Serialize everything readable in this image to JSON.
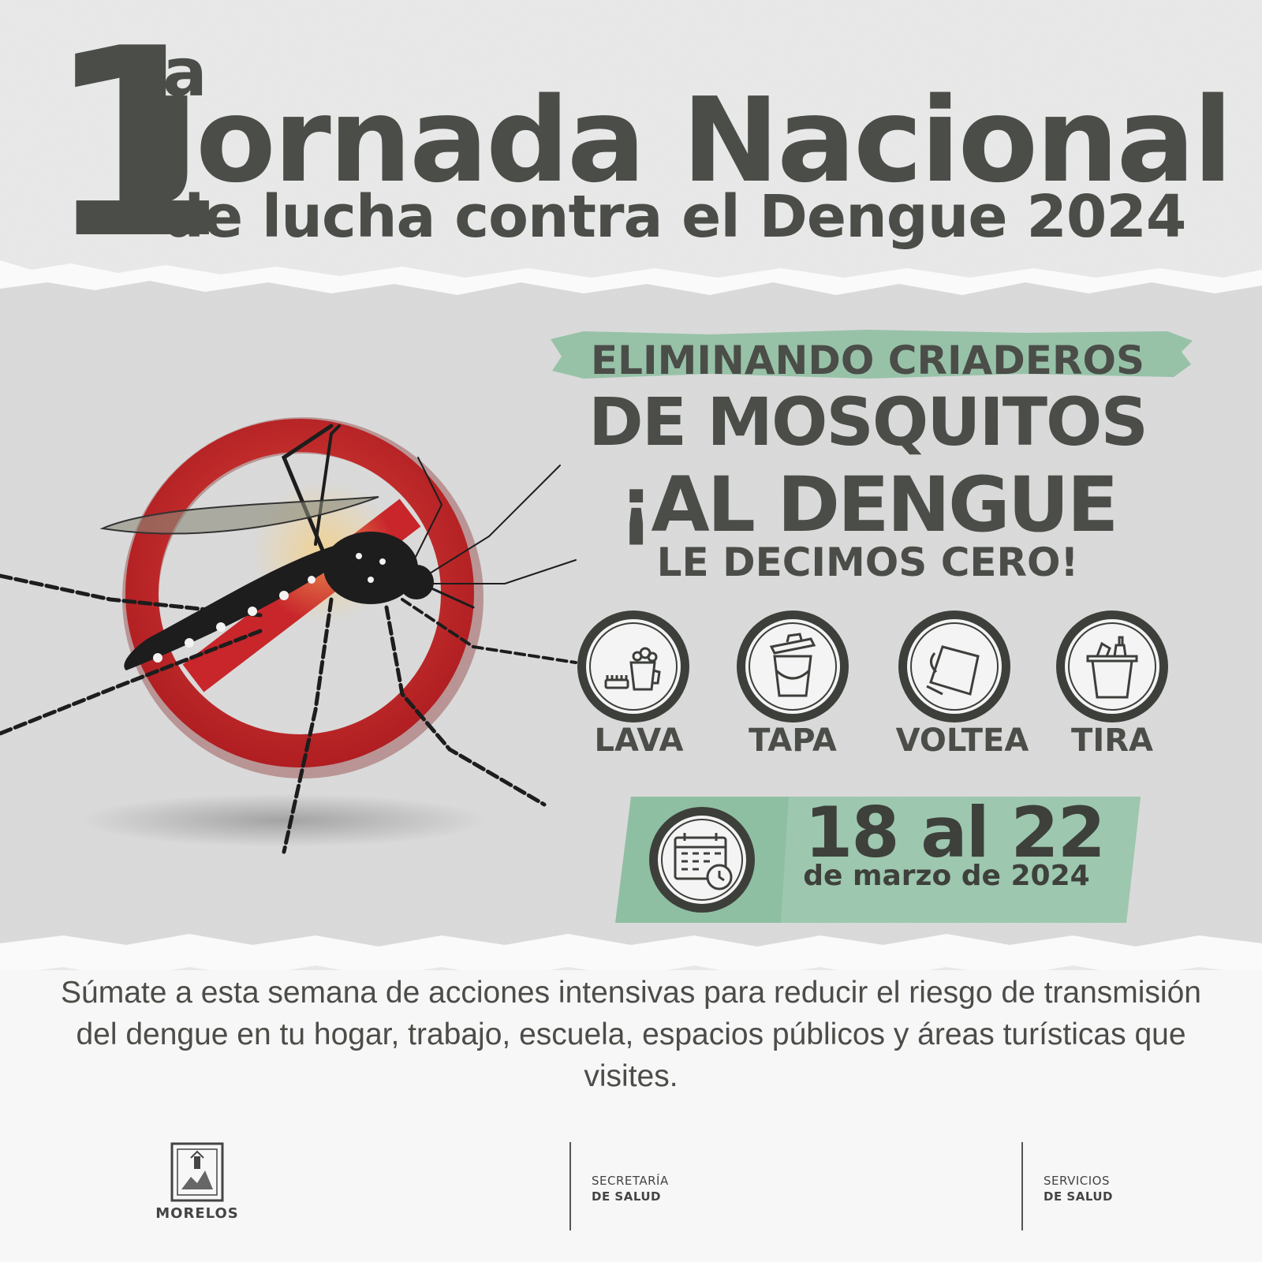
{
  "header": {
    "ordinal_number": "1",
    "ordinal_suffix": "a",
    "title_line1": "Jornada Nacional",
    "title_line2": "de lucha contra el Dengue 2024"
  },
  "slogan": {
    "line1": "ELIMINANDO CRIADEROS",
    "line2": "DE MOSQUITOS",
    "line3": "¡AL DENGUE",
    "line4": "LE DECIMOS CERO!"
  },
  "actions": [
    {
      "label": "LAVA",
      "icon": "wash-bucket-icon"
    },
    {
      "label": "TAPA",
      "icon": "covered-bucket-icon"
    },
    {
      "label": "VOLTEA",
      "icon": "flipped-bucket-icon"
    },
    {
      "label": "TIRA",
      "icon": "trash-bin-icon"
    }
  ],
  "dates": {
    "range": "18 al 22",
    "month_year": "de marzo de 2024",
    "icon": "calendar-clock-icon"
  },
  "body_text": "Súmate a esta semana de acciones intensivas para reducir el riesgo de transmisión del dengue en tu hogar, trabajo, escuela, espacios públicos y áreas turísticas que visites.",
  "footer": {
    "logo_morelos": "MORELOS",
    "secretaria_line1": "SECRETARÍA",
    "secretaria_line2": "DE SALUD",
    "servicios_line1": "SERVICIOS",
    "servicios_line2": "DE SALUD"
  },
  "colors": {
    "text_dark": "#4b4d48",
    "green_band": "#8fbfa2",
    "prohibition_red": "#c8262b",
    "paper_gray": "#e4e4e4"
  }
}
